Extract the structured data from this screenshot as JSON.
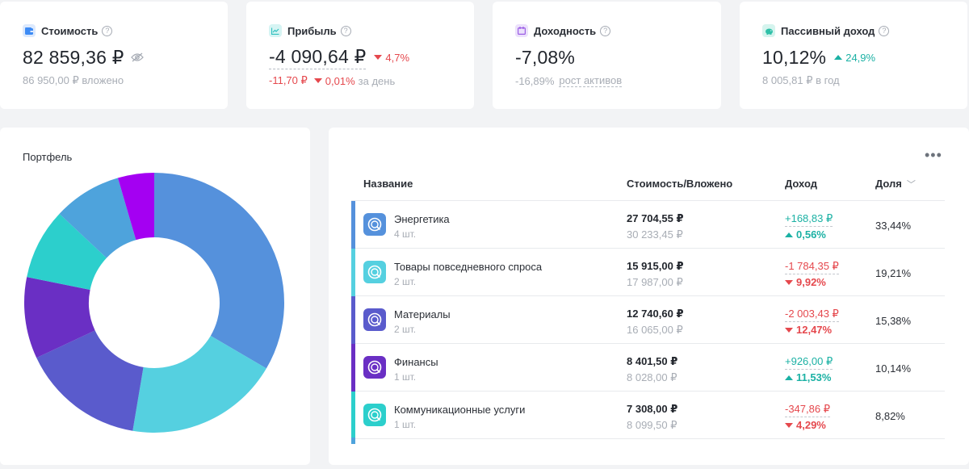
{
  "stats": [
    {
      "label": "Стоимость",
      "value": "82 859,36 ₽",
      "sub": "86 950,00 ₽ вложено",
      "color": "#3d8bf5",
      "icon": "wallet-icon"
    },
    {
      "label": "Прибыль",
      "value": "-4 090,64 ₽",
      "change": "4,7%",
      "sub_value": "-11,70 ₽",
      "sub_change": "0,01%",
      "sub_suffix": "за день",
      "color": "#2fc0bf",
      "icon": "line-chart-icon"
    },
    {
      "label": "Доходность",
      "value": "-7,08%",
      "sub_value": "-16,89%",
      "sub_link": "рост активов",
      "color": "#9b5de5",
      "icon": "calendar-icon"
    },
    {
      "label": "Пассивный доход",
      "value": "10,12%",
      "change": "24,9%",
      "sub": "8 005,81 ₽ в год",
      "color": "#2fc0a8",
      "icon": "piggy-bank-icon"
    }
  ],
  "portfolio": {
    "title": "Портфель"
  },
  "chart_data": {
    "type": "pie",
    "donut": true,
    "categories": [
      "Энергетика",
      "Товары повседневного спроса",
      "Материалы",
      "Финансы",
      "Коммуникационные услуги",
      "",
      ""
    ],
    "values": [
      33.44,
      19.21,
      15.38,
      10.14,
      8.82,
      8.5,
      4.51
    ],
    "colors": [
      "#5591dc",
      "#55d0e0",
      "#5a5bcc",
      "#6a2fc4",
      "#2ccfcc",
      "#4ea3dc",
      "#a400f2"
    ]
  },
  "table": {
    "more": "•••",
    "headers": {
      "name": "Название",
      "cost": "Стоимость/Вложено",
      "income": "Доход",
      "share": "Доля"
    },
    "rows": [
      {
        "name": "Энергетика",
        "qty": "4 шт.",
        "cost": "27 704,55 ₽",
        "invested": "30 233,45 ₽",
        "income": "+168,83 ₽",
        "pct": "0,56%",
        "trend": "up",
        "share": "33,44%",
        "color": "#5591dc"
      },
      {
        "name": "Товары повседневного спроса",
        "qty": "2 шт.",
        "cost": "15 915,00 ₽",
        "invested": "17 987,00 ₽",
        "income": "-1 784,35 ₽",
        "pct": "9,92%",
        "trend": "down",
        "share": "19,21%",
        "color": "#55d0e0"
      },
      {
        "name": "Материалы",
        "qty": "2 шт.",
        "cost": "12 740,60 ₽",
        "invested": "16 065,00 ₽",
        "income": "-2 003,43 ₽",
        "pct": "12,47%",
        "trend": "down",
        "share": "15,38%",
        "color": "#5a5bcc"
      },
      {
        "name": "Финансы",
        "qty": "1 шт.",
        "cost": "8 401,50 ₽",
        "invested": "8 028,00 ₽",
        "income": "+926,00 ₽",
        "pct": "11,53%",
        "trend": "up",
        "share": "10,14%",
        "color": "#6a2fc4"
      },
      {
        "name": "Коммуникационные услуги",
        "qty": "1 шт.",
        "cost": "7 308,00 ₽",
        "invested": "8 099,50 ₽",
        "income": "-347,86 ₽",
        "pct": "4,29%",
        "trend": "down",
        "share": "8,82%",
        "color": "#2ccfcc"
      }
    ],
    "tail_color": "#4ea3dc"
  }
}
